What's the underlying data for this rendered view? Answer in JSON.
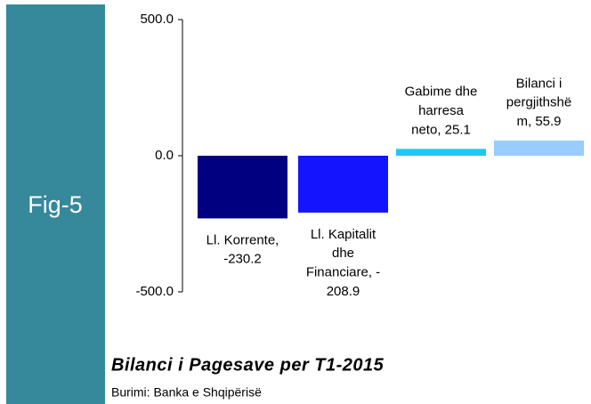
{
  "figure_label": "Fig-5",
  "chart_data": {
    "type": "bar",
    "title": "Bilanci i Pagesave per T1-2015",
    "source": "Burimi: Banka e Shqipërisë",
    "values": [
      -230.2,
      -208.9,
      25.1,
      55.9
    ],
    "data_labels": [
      [
        "Ll. Korrente,",
        "-230.2"
      ],
      [
        "Ll. Kapitalit",
        "dhe",
        "Financiare, -",
        "208.9"
      ],
      [
        "Gabime dhe",
        "harresa",
        "neto, 25.1"
      ],
      [
        "Bilanci i",
        "pergjithshë",
        "m, 55.9"
      ]
    ],
    "colors": [
      "#000080",
      "#1414ff",
      "#1ec8f0",
      "#99ccff"
    ],
    "ylim": [
      -500,
      500
    ],
    "yticks": [
      {
        "value": -500,
        "label": "-500.0"
      },
      {
        "value": 0,
        "label": "0.0"
      },
      {
        "value": 500,
        "label": "500.0"
      }
    ]
  }
}
